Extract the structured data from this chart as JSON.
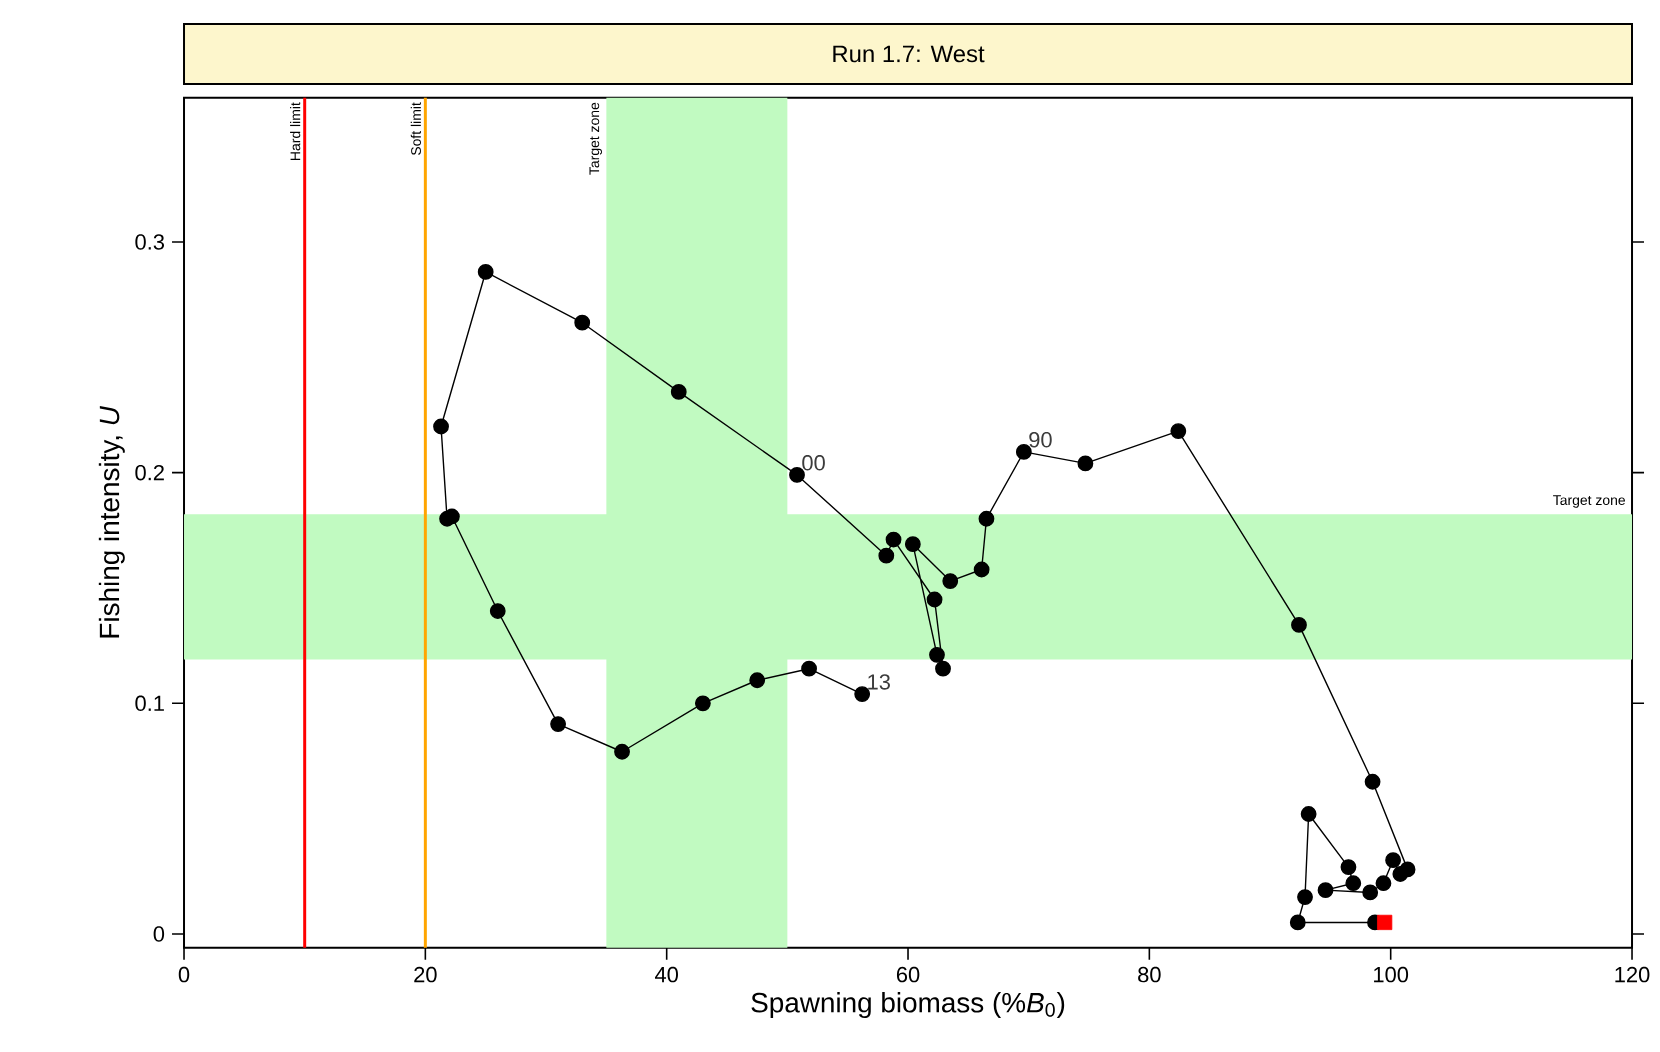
{
  "chart_data": {
    "type": "line",
    "title": "Run 1.7: West",
    "xlabel": "Spawning biomass (%*B*$_{0}$)",
    "ylabel": "Fishing intensity, *U*",
    "xlim": [
      0,
      120
    ],
    "xticks": [
      0,
      20,
      40,
      60,
      80,
      100,
      120
    ],
    "ylim": [
      -0.006,
      0.3625
    ],
    "yticks": [
      0,
      0.1,
      0.2,
      0.3
    ],
    "series": [
      {
        "marker": "circle",
        "color": "#000000",
        "x": [
          98.7,
          92.3,
          92.9,
          93.2,
          96.5,
          96.9,
          94.6,
          98.3,
          99.4,
          100.2,
          100.8,
          101.4,
          98.5,
          92.4,
          82.4,
          74.7,
          69.6,
          66.5,
          66.1,
          63.5,
          60.4,
          62.4,
          62.9,
          62.2,
          58.8,
          58.2,
          50.8,
          41,
          33,
          25,
          21.3,
          21.8,
          22.2,
          26,
          31,
          36.3,
          43,
          47.5,
          51.8,
          56.2
        ],
        "values": [
          0.005,
          0.005,
          0.016,
          0.052,
          0.029,
          0.022,
          0.019,
          0.018,
          0.022,
          0.032,
          0.026,
          0.028,
          0.066,
          0.134,
          0.218,
          0.204,
          0.209,
          0.18,
          0.158,
          0.153,
          0.169,
          0.121,
          0.115,
          0.145,
          0.171,
          0.164,
          0.199,
          0.235,
          0.265,
          0.287,
          0.22,
          0.18,
          0.181,
          0.14,
          0.091,
          0.079,
          0.1,
          0.11,
          0.115,
          0.104
        ]
      },
      {
        "type": "scatter",
        "marker": "square",
        "color": "#ff0000",
        "x": [
          99.5
        ],
        "values": [
          0.005
        ]
      }
    ],
    "ref_lines": [
      {
        "axis": "x",
        "value": 10,
        "label": "Hard limit",
        "color": "#ff0000"
      },
      {
        "axis": "x",
        "value": 20,
        "label": "Soft limit",
        "color": "#ffa500"
      }
    ],
    "bands": [
      {
        "axis": "x",
        "from": 35,
        "to": 50,
        "label": "Target zone",
        "color": "#c1fac1"
      },
      {
        "axis": "y",
        "from": 0.119,
        "to": 0.182,
        "label": "Target zone",
        "color": "#c1fac1"
      }
    ],
    "annotations": [
      {
        "text": "00",
        "x": 50.8,
        "y": 0.199
      },
      {
        "text": "90",
        "x": 69.6,
        "y": 0.209
      },
      {
        "text": "13",
        "x": 56.2,
        "y": 0.104
      }
    ]
  }
}
